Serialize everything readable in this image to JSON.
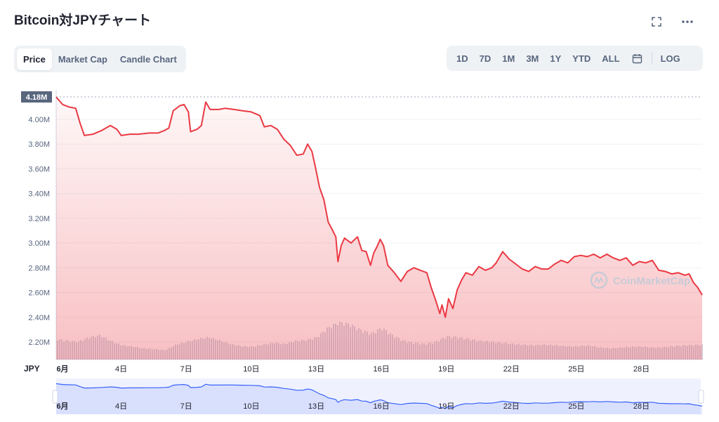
{
  "header": {
    "title": "Bitcoin対JPYチャート",
    "icons": [
      "fullscreen-icon",
      "more-options-icon"
    ]
  },
  "tabs": [
    {
      "label": "Price",
      "active": true
    },
    {
      "label": "Market Cap",
      "active": false
    },
    {
      "label": "Candle Chart",
      "active": false
    }
  ],
  "ranges": [
    "1D",
    "7D",
    "1M",
    "3M",
    "1Y",
    "YTD",
    "ALL"
  ],
  "ranges_extra": {
    "calendar_icon": "calendar-icon",
    "log_label": "LOG"
  },
  "watermark": "CoinMarketCap",
  "colors": {
    "line": "#ea3943",
    "fill": "#ea3943",
    "volume": "#cfd6e4",
    "navigator": "#3861fb",
    "current_badge": "#58667e"
  },
  "chart_data": {
    "type": "area",
    "currency_label": "JPY",
    "current_value_label": "4.18M",
    "y_ticks": [
      "4.00M",
      "3.80M",
      "3.60M",
      "3.40M",
      "3.20M",
      "3.00M",
      "2.80M",
      "2.60M",
      "2.40M",
      "2.20M"
    ],
    "ylim": [
      2.15,
      4.2
    ],
    "x_ticks": [
      {
        "day": 1,
        "label": "6月"
      },
      {
        "day": 4,
        "label": "4日"
      },
      {
        "day": 7,
        "label": "7日"
      },
      {
        "day": 10,
        "label": "10日"
      },
      {
        "day": 13,
        "label": "13日"
      },
      {
        "day": 16,
        "label": "16日"
      },
      {
        "day": 19,
        "label": "19日"
      },
      {
        "day": 22,
        "label": "22日"
      },
      {
        "day": 25,
        "label": "25日"
      },
      {
        "day": 28,
        "label": "28日"
      }
    ],
    "xlim": [
      1,
      30.8
    ],
    "series": [
      {
        "values_unit": "M JPY",
        "points": [
          [
            1.0,
            4.18
          ],
          [
            1.3,
            4.12
          ],
          [
            1.6,
            4.1
          ],
          [
            1.9,
            4.09
          ],
          [
            2.1,
            3.97
          ],
          [
            2.3,
            3.87
          ],
          [
            2.7,
            3.88
          ],
          [
            3.1,
            3.91
          ],
          [
            3.5,
            3.95
          ],
          [
            3.8,
            3.92
          ],
          [
            4.0,
            3.87
          ],
          [
            4.4,
            3.88
          ],
          [
            4.8,
            3.88
          ],
          [
            5.3,
            3.89
          ],
          [
            5.7,
            3.89
          ],
          [
            6.0,
            3.91
          ],
          [
            6.2,
            3.93
          ],
          [
            6.4,
            4.07
          ],
          [
            6.7,
            4.11
          ],
          [
            6.9,
            4.12
          ],
          [
            7.1,
            4.06
          ],
          [
            7.2,
            3.9
          ],
          [
            7.5,
            3.92
          ],
          [
            7.7,
            3.95
          ],
          [
            7.9,
            4.14
          ],
          [
            8.1,
            4.08
          ],
          [
            8.5,
            4.08
          ],
          [
            8.8,
            4.09
          ],
          [
            9.2,
            4.08
          ],
          [
            9.6,
            4.07
          ],
          [
            10.0,
            4.06
          ],
          [
            10.4,
            4.03
          ],
          [
            10.6,
            3.94
          ],
          [
            10.9,
            3.95
          ],
          [
            11.2,
            3.92
          ],
          [
            11.5,
            3.84
          ],
          [
            11.8,
            3.79
          ],
          [
            12.1,
            3.71
          ],
          [
            12.4,
            3.72
          ],
          [
            12.6,
            3.8
          ],
          [
            12.8,
            3.74
          ],
          [
            12.95,
            3.62
          ],
          [
            13.15,
            3.45
          ],
          [
            13.35,
            3.35
          ],
          [
            13.55,
            3.17
          ],
          [
            13.7,
            3.12
          ],
          [
            13.9,
            3.05
          ],
          [
            14.0,
            2.85
          ],
          [
            14.15,
            2.98
          ],
          [
            14.3,
            3.04
          ],
          [
            14.6,
            3.0
          ],
          [
            14.9,
            3.05
          ],
          [
            15.1,
            2.94
          ],
          [
            15.3,
            2.93
          ],
          [
            15.5,
            2.82
          ],
          [
            15.65,
            2.92
          ],
          [
            15.8,
            2.97
          ],
          [
            15.95,
            3.03
          ],
          [
            16.1,
            2.98
          ],
          [
            16.3,
            2.82
          ],
          [
            16.6,
            2.76
          ],
          [
            16.9,
            2.69
          ],
          [
            17.2,
            2.77
          ],
          [
            17.5,
            2.8
          ],
          [
            17.8,
            2.78
          ],
          [
            18.1,
            2.76
          ],
          [
            18.3,
            2.64
          ],
          [
            18.5,
            2.54
          ],
          [
            18.7,
            2.43
          ],
          [
            18.8,
            2.5
          ],
          [
            18.95,
            2.4
          ],
          [
            19.1,
            2.55
          ],
          [
            19.3,
            2.47
          ],
          [
            19.5,
            2.62
          ],
          [
            19.7,
            2.7
          ],
          [
            19.9,
            2.76
          ],
          [
            20.2,
            2.74
          ],
          [
            20.5,
            2.81
          ],
          [
            20.8,
            2.78
          ],
          [
            21.1,
            2.8
          ],
          [
            21.3,
            2.84
          ],
          [
            21.6,
            2.93
          ],
          [
            21.9,
            2.87
          ],
          [
            22.2,
            2.83
          ],
          [
            22.5,
            2.79
          ],
          [
            22.8,
            2.77
          ],
          [
            23.1,
            2.81
          ],
          [
            23.4,
            2.79
          ],
          [
            23.7,
            2.79
          ],
          [
            24.0,
            2.83
          ],
          [
            24.3,
            2.86
          ],
          [
            24.6,
            2.84
          ],
          [
            24.9,
            2.89
          ],
          [
            25.2,
            2.9
          ],
          [
            25.5,
            2.89
          ],
          [
            25.8,
            2.91
          ],
          [
            26.1,
            2.88
          ],
          [
            26.4,
            2.91
          ],
          [
            26.7,
            2.88
          ],
          [
            27.0,
            2.86
          ],
          [
            27.3,
            2.88
          ],
          [
            27.6,
            2.82
          ],
          [
            27.9,
            2.85
          ],
          [
            28.2,
            2.84
          ],
          [
            28.5,
            2.86
          ],
          [
            28.8,
            2.78
          ],
          [
            29.1,
            2.77
          ],
          [
            29.4,
            2.75
          ],
          [
            29.7,
            2.76
          ],
          [
            30.0,
            2.74
          ],
          [
            30.2,
            2.75
          ],
          [
            30.4,
            2.68
          ],
          [
            30.6,
            2.64
          ],
          [
            30.8,
            2.58
          ]
        ]
      }
    ],
    "volume_points": [
      [
        1.0,
        0.55
      ],
      [
        1.5,
        0.5
      ],
      [
        2.0,
        0.48
      ],
      [
        2.5,
        0.6
      ],
      [
        3.0,
        0.65
      ],
      [
        3.5,
        0.5
      ],
      [
        4.0,
        0.38
      ],
      [
        4.5,
        0.35
      ],
      [
        5.0,
        0.3
      ],
      [
        5.5,
        0.28
      ],
      [
        6.0,
        0.25
      ],
      [
        6.5,
        0.4
      ],
      [
        7.0,
        0.48
      ],
      [
        7.5,
        0.55
      ],
      [
        8.0,
        0.6
      ],
      [
        8.5,
        0.52
      ],
      [
        9.0,
        0.42
      ],
      [
        9.5,
        0.36
      ],
      [
        10.0,
        0.34
      ],
      [
        10.5,
        0.4
      ],
      [
        11.0,
        0.45
      ],
      [
        11.5,
        0.42
      ],
      [
        12.0,
        0.5
      ],
      [
        12.5,
        0.52
      ],
      [
        13.0,
        0.6
      ],
      [
        13.5,
        0.85
      ],
      [
        14.0,
        1.0
      ],
      [
        14.5,
        0.95
      ],
      [
        15.0,
        0.8
      ],
      [
        15.5,
        0.7
      ],
      [
        16.0,
        0.85
      ],
      [
        16.5,
        0.65
      ],
      [
        17.0,
        0.5
      ],
      [
        17.5,
        0.45
      ],
      [
        18.0,
        0.42
      ],
      [
        18.5,
        0.48
      ],
      [
        19.0,
        0.62
      ],
      [
        19.5,
        0.6
      ],
      [
        20.0,
        0.55
      ],
      [
        20.5,
        0.5
      ],
      [
        21.0,
        0.48
      ],
      [
        21.5,
        0.45
      ],
      [
        22.0,
        0.42
      ],
      [
        22.5,
        0.4
      ],
      [
        23.0,
        0.38
      ],
      [
        23.5,
        0.4
      ],
      [
        24.0,
        0.38
      ],
      [
        24.5,
        0.36
      ],
      [
        25.0,
        0.35
      ],
      [
        25.5,
        0.38
      ],
      [
        26.0,
        0.33
      ],
      [
        26.5,
        0.3
      ],
      [
        27.0,
        0.32
      ],
      [
        27.5,
        0.34
      ],
      [
        28.0,
        0.35
      ],
      [
        28.5,
        0.32
      ],
      [
        29.0,
        0.33
      ],
      [
        29.5,
        0.36
      ],
      [
        30.0,
        0.38
      ],
      [
        30.8,
        0.4
      ]
    ],
    "grid": true,
    "watermark": "CoinMarketCap"
  }
}
